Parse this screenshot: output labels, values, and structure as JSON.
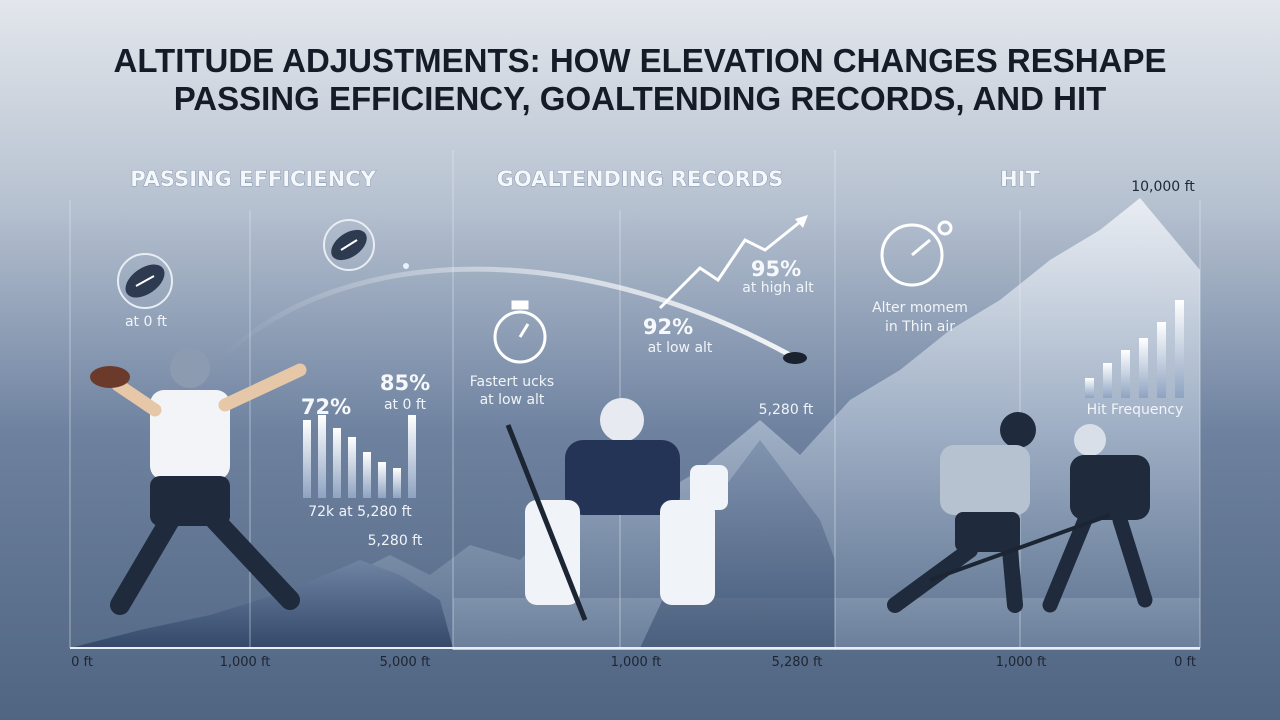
{
  "title": {
    "lines": [
      "ALTITUDE ADJUSTMENTS: HOW ELEVATION CHANGES RESHAPE",
      "PASSING EFFICIENCY, GOALTENDING RECORDS, AND HIT"
    ]
  },
  "panels": [
    {
      "heading": "PASSING EFFICIENCY",
      "labels": [
        "at 0 ft",
        "72%",
        "85%",
        "at 0 ft",
        "72k at 5,280 ft",
        "5,280 ft"
      ],
      "axis_labels": [
        "0 ft",
        "1,000 ft",
        "5,000 ft"
      ]
    },
    {
      "heading": "GOALTENDING RECORDS",
      "labels": [
        "Fastert ucks",
        "at low alt",
        "92%",
        "at low alt",
        "95%",
        "at high alt",
        "5,280 ft"
      ],
      "axis_labels": [
        "1,000 ft",
        "5,280 ft"
      ]
    },
    {
      "heading": "HIT",
      "labels": [
        "10,000 ft",
        "Alter momem",
        "in Thin air",
        "Hit Frequency"
      ],
      "axis_labels": [
        "1,000 ft",
        "0 ft"
      ]
    }
  ]
}
